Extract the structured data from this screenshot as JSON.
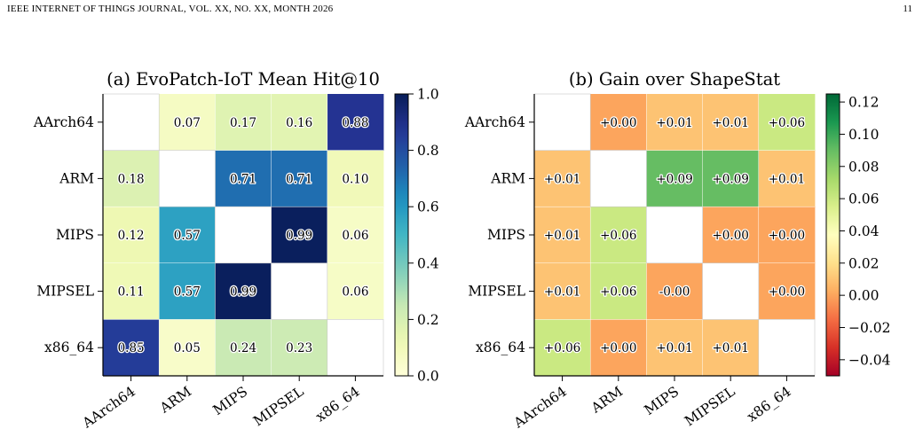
{
  "page": {
    "header_left": "IEEE INTERNET OF THINGS JOURNAL, VOL. XX, NO. XX, MONTH 2026",
    "page_number": "11"
  },
  "chart_data": [
    {
      "type": "heatmap",
      "title": "(a) EvoPatch-IoT Mean Hit@10",
      "rows": [
        "AArch64",
        "ARM",
        "MIPS",
        "MIPSEL",
        "x86_64"
      ],
      "columns": [
        "AArch64",
        "ARM",
        "MIPS",
        "MIPSEL",
        "x86_64"
      ],
      "values": [
        [
          null,
          0.07,
          0.17,
          0.16,
          0.88
        ],
        [
          0.18,
          null,
          0.71,
          0.71,
          0.1
        ],
        [
          0.12,
          0.57,
          null,
          0.99,
          0.06
        ],
        [
          0.11,
          0.57,
          0.99,
          null,
          0.06
        ],
        [
          0.85,
          0.05,
          0.24,
          0.23,
          null
        ]
      ],
      "labels": [
        [
          "",
          "0.07",
          "0.17",
          "0.16",
          "0.88"
        ],
        [
          "0.18",
          "",
          "0.71",
          "0.71",
          "0.10"
        ],
        [
          "0.12",
          "0.57",
          "",
          "0.99",
          "0.06"
        ],
        [
          "0.11",
          "0.57",
          "0.99",
          "",
          "0.06"
        ],
        [
          "0.85",
          "0.05",
          "0.24",
          "0.23",
          ""
        ]
      ],
      "colormap": "YlGnBu",
      "vmin": 0.0,
      "vmax": 1.0,
      "colorbar_ticks": [
        "0.0",
        "0.2",
        "0.4",
        "0.6",
        "0.8",
        "1.0"
      ]
    },
    {
      "type": "heatmap",
      "title": "(b) Gain over ShapeStat",
      "rows": [
        "AArch64",
        "ARM",
        "MIPS",
        "MIPSEL",
        "x86_64"
      ],
      "columns": [
        "AArch64",
        "ARM",
        "MIPS",
        "MIPSEL",
        "x86_64"
      ],
      "values": [
        [
          null,
          0.0,
          0.01,
          0.01,
          0.06
        ],
        [
          0.01,
          null,
          0.09,
          0.09,
          0.01
        ],
        [
          0.01,
          0.06,
          null,
          0.0,
          0.0
        ],
        [
          0.01,
          0.06,
          -0.0,
          null,
          0.0
        ],
        [
          0.06,
          0.0,
          0.01,
          0.01,
          null
        ]
      ],
      "labels": [
        [
          "",
          "+0.00",
          "+0.01",
          "+0.01",
          "+0.06"
        ],
        [
          "+0.01",
          "",
          "+0.09",
          "+0.09",
          "+0.01"
        ],
        [
          "+0.01",
          "+0.06",
          "",
          "+0.00",
          "+0.00"
        ],
        [
          "+0.01",
          "+0.06",
          "-0.00",
          "",
          "+0.00"
        ],
        [
          "+0.06",
          "+0.00",
          "+0.01",
          "+0.01",
          ""
        ]
      ],
      "colormap": "RdYlGn",
      "vmin": -0.05,
      "vmax": 0.125,
      "colorbar_ticks": [
        "−0.04",
        "−0.02",
        "0.00",
        "0.02",
        "0.04",
        "0.06",
        "0.08",
        "0.10",
        "0.12"
      ]
    }
  ]
}
